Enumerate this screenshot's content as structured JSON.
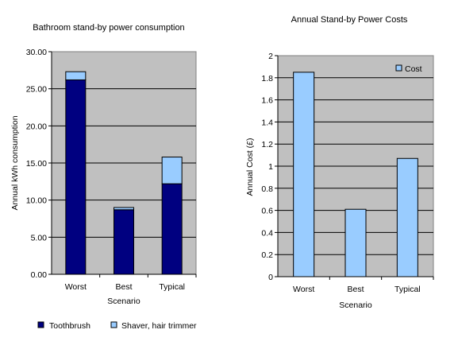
{
  "chart_data": [
    {
      "type": "bar",
      "stacked": true,
      "title": "Bathroom stand-by power consumption",
      "xlabel": "Scenario",
      "ylabel": "Annual kWh consumption",
      "categories": [
        "Worst",
        "Best",
        "Typical"
      ],
      "series": [
        {
          "name": "Toothbrush",
          "values": [
            26.2,
            8.7,
            12.2
          ],
          "color": "#000080"
        },
        {
          "name": "Shaver, hair trimmer",
          "values": [
            1.1,
            0.3,
            3.6
          ],
          "color": "#99ccff"
        }
      ],
      "ylim": [
        0,
        30
      ],
      "yticks": [
        "0.00",
        "5.00",
        "10.00",
        "15.00",
        "20.00",
        "25.00",
        "30.00"
      ],
      "grid": true,
      "legend_position": "bottom",
      "plot_bg": "#c0c0c0"
    },
    {
      "type": "bar",
      "title": "Annual Stand-by Power Costs",
      "xlabel": "Scenario",
      "ylabel": "Annual Cost (£)",
      "categories": [
        "Worst",
        "Best",
        "Typical"
      ],
      "series": [
        {
          "name": "Cost",
          "values": [
            1.85,
            0.61,
            1.07
          ],
          "color": "#99ccff"
        }
      ],
      "ylim": [
        0,
        2
      ],
      "yticks": [
        "0",
        "0.2",
        "0.4",
        "0.6",
        "0.8",
        "1",
        "1.2",
        "1.4",
        "1.6",
        "1.8",
        "2"
      ],
      "grid": true,
      "legend_position": "top-right",
      "plot_bg": "#c0c0c0"
    }
  ]
}
